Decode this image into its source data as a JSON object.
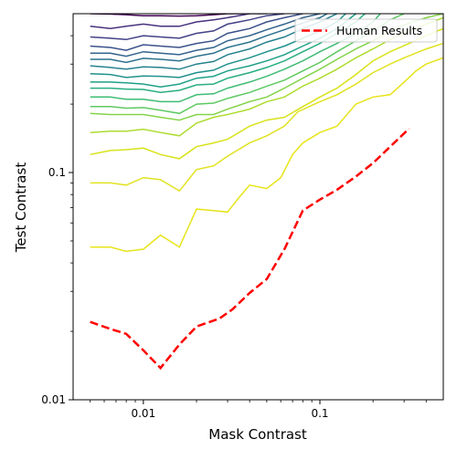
{
  "chart_data": {
    "type": "line",
    "title": "",
    "xlabel": "Mask Contrast",
    "ylabel": "Test Contrast",
    "xscale": "log",
    "yscale": "log",
    "xlim": [
      0.004,
      0.5
    ],
    "ylim": [
      0.01,
      0.5
    ],
    "x_ticks": [
      {
        "value": 0.01,
        "label": "0.01"
      },
      {
        "value": 0.1,
        "label": "0.1"
      }
    ],
    "y_ticks": [
      {
        "value": 0.01,
        "label": "0.01"
      },
      {
        "value": 0.1,
        "label": "0.1"
      }
    ],
    "grid": false,
    "legend": {
      "position": "top-right",
      "entries": [
        "Human Results"
      ]
    },
    "series": [
      {
        "name": "Human Results",
        "style": "dashed",
        "color": "#ff0000",
        "x": [
          0.005,
          0.0065,
          0.008,
          0.01,
          0.0125,
          0.016,
          0.02,
          0.027,
          0.032,
          0.04,
          0.05,
          0.063,
          0.08,
          0.1,
          0.125,
          0.16,
          0.2,
          0.25,
          0.32
        ],
        "y": [
          0.022,
          0.0205,
          0.0195,
          0.0165,
          0.0138,
          0.0175,
          0.021,
          0.0228,
          0.025,
          0.0295,
          0.034,
          0.046,
          0.068,
          0.076,
          0.084,
          0.096,
          0.11,
          0.13,
          0.156
        ]
      }
    ],
    "contour_lines": [
      {
        "color": "#440154",
        "x": [
          0.005,
          0.0065,
          0.008,
          0.01,
          0.0125,
          0.016,
          0.02,
          0.025,
          0.03,
          0.04
        ],
        "y": [
          0.5,
          0.498,
          0.495,
          0.49,
          0.49,
          0.488,
          0.49,
          0.495,
          0.5,
          0.5
        ]
      },
      {
        "color": "#46327e",
        "x": [
          0.005,
          0.0065,
          0.008,
          0.01,
          0.0125,
          0.016,
          0.02,
          0.025,
          0.03,
          0.04,
          0.05
        ],
        "y": [
          0.44,
          0.43,
          0.44,
          0.45,
          0.44,
          0.44,
          0.46,
          0.47,
          0.48,
          0.5,
          0.5
        ]
      },
      {
        "color": "#424186",
        "x": [
          0.005,
          0.0065,
          0.008,
          0.01,
          0.0125,
          0.016,
          0.02,
          0.025,
          0.03,
          0.04,
          0.05,
          0.063
        ],
        "y": [
          0.395,
          0.39,
          0.385,
          0.4,
          0.395,
          0.39,
          0.41,
          0.42,
          0.45,
          0.47,
          0.49,
          0.5
        ]
      },
      {
        "color": "#3b518b",
        "x": [
          0.005,
          0.0065,
          0.008,
          0.01,
          0.0125,
          0.016,
          0.02,
          0.025,
          0.03,
          0.04,
          0.05,
          0.063,
          0.08
        ],
        "y": [
          0.36,
          0.355,
          0.345,
          0.365,
          0.36,
          0.355,
          0.37,
          0.38,
          0.41,
          0.43,
          0.46,
          0.48,
          0.5
        ]
      },
      {
        "color": "#33638d",
        "x": [
          0.005,
          0.0065,
          0.008,
          0.01,
          0.0125,
          0.016,
          0.02,
          0.025,
          0.03,
          0.04,
          0.05,
          0.063,
          0.08,
          0.1
        ],
        "y": [
          0.335,
          0.335,
          0.325,
          0.34,
          0.335,
          0.33,
          0.345,
          0.355,
          0.38,
          0.4,
          0.425,
          0.45,
          0.48,
          0.5
        ]
      },
      {
        "color": "#2c728e",
        "x": [
          0.005,
          0.0065,
          0.008,
          0.01,
          0.0125,
          0.016,
          0.02,
          0.025,
          0.03,
          0.04,
          0.05,
          0.063,
          0.08,
          0.1,
          0.11
        ],
        "y": [
          0.315,
          0.315,
          0.305,
          0.318,
          0.315,
          0.31,
          0.325,
          0.335,
          0.355,
          0.375,
          0.4,
          0.425,
          0.455,
          0.48,
          0.5
        ]
      },
      {
        "color": "#26828e",
        "x": [
          0.005,
          0.0065,
          0.008,
          0.01,
          0.0125,
          0.016,
          0.02,
          0.025,
          0.03,
          0.04,
          0.05,
          0.063,
          0.08,
          0.1,
          0.125
        ],
        "y": [
          0.295,
          0.29,
          0.285,
          0.292,
          0.29,
          0.285,
          0.3,
          0.308,
          0.33,
          0.35,
          0.375,
          0.395,
          0.43,
          0.46,
          0.5
        ]
      },
      {
        "color": "#21918c",
        "x": [
          0.005,
          0.0065,
          0.008,
          0.01,
          0.0125,
          0.016,
          0.02,
          0.025,
          0.03,
          0.04,
          0.05,
          0.063,
          0.08,
          0.1,
          0.125,
          0.14
        ],
        "y": [
          0.272,
          0.27,
          0.262,
          0.266,
          0.265,
          0.262,
          0.275,
          0.282,
          0.3,
          0.32,
          0.34,
          0.36,
          0.39,
          0.42,
          0.46,
          0.5
        ]
      },
      {
        "color": "#1fa088",
        "x": [
          0.005,
          0.0065,
          0.008,
          0.01,
          0.0125,
          0.016,
          0.02,
          0.025,
          0.03,
          0.04,
          0.05,
          0.063,
          0.08,
          0.1,
          0.125,
          0.16
        ],
        "y": [
          0.25,
          0.25,
          0.248,
          0.245,
          0.238,
          0.245,
          0.26,
          0.265,
          0.28,
          0.295,
          0.31,
          0.33,
          0.36,
          0.39,
          0.43,
          0.5
        ]
      },
      {
        "color": "#28ae80",
        "x": [
          0.005,
          0.0065,
          0.008,
          0.01,
          0.0125,
          0.016,
          0.02,
          0.025,
          0.03,
          0.04,
          0.05,
          0.063,
          0.08,
          0.1,
          0.125,
          0.16,
          0.18
        ],
        "y": [
          0.235,
          0.235,
          0.233,
          0.232,
          0.225,
          0.23,
          0.243,
          0.245,
          0.26,
          0.275,
          0.29,
          0.31,
          0.34,
          0.37,
          0.41,
          0.46,
          0.5
        ]
      },
      {
        "color": "#3fbc73",
        "x": [
          0.005,
          0.0065,
          0.008,
          0.01,
          0.0125,
          0.016,
          0.02,
          0.025,
          0.03,
          0.04,
          0.05,
          0.063,
          0.08,
          0.1,
          0.125,
          0.16,
          0.2,
          0.22
        ],
        "y": [
          0.215,
          0.215,
          0.21,
          0.21,
          0.205,
          0.205,
          0.22,
          0.222,
          0.235,
          0.25,
          0.265,
          0.285,
          0.31,
          0.34,
          0.37,
          0.41,
          0.46,
          0.5
        ]
      },
      {
        "color": "#5ec962",
        "x": [
          0.005,
          0.0065,
          0.008,
          0.01,
          0.0125,
          0.016,
          0.02,
          0.025,
          0.03,
          0.04,
          0.05,
          0.063,
          0.08,
          0.1,
          0.125,
          0.16,
          0.2,
          0.25,
          0.3
        ],
        "y": [
          0.195,
          0.195,
          0.192,
          0.193,
          0.188,
          0.182,
          0.2,
          0.202,
          0.212,
          0.225,
          0.24,
          0.255,
          0.28,
          0.305,
          0.34,
          0.38,
          0.42,
          0.47,
          0.5
        ]
      },
      {
        "color": "#84d44b",
        "x": [
          0.005,
          0.0065,
          0.008,
          0.01,
          0.0125,
          0.016,
          0.02,
          0.025,
          0.03,
          0.04,
          0.05,
          0.063,
          0.08,
          0.1,
          0.125,
          0.16,
          0.2,
          0.25,
          0.32,
          0.4,
          0.5
        ],
        "y": [
          0.182,
          0.18,
          0.18,
          0.18,
          0.175,
          0.17,
          0.18,
          0.18,
          0.19,
          0.205,
          0.215,
          0.235,
          0.26,
          0.285,
          0.315,
          0.35,
          0.38,
          0.42,
          0.455,
          0.48,
          0.5
        ]
      },
      {
        "color": "#addc30",
        "x": [
          0.005,
          0.0065,
          0.008,
          0.01,
          0.0125,
          0.016,
          0.02,
          0.025,
          0.03,
          0.04,
          0.05,
          0.063,
          0.08,
          0.1,
          0.125,
          0.16,
          0.2,
          0.25,
          0.32,
          0.4,
          0.5
        ],
        "y": [
          0.15,
          0.152,
          0.152,
          0.155,
          0.15,
          0.145,
          0.165,
          0.175,
          0.18,
          0.19,
          0.205,
          0.215,
          0.24,
          0.26,
          0.285,
          0.32,
          0.35,
          0.385,
          0.42,
          0.45,
          0.48
        ]
      },
      {
        "color": "#d8e219",
        "x": [
          0.005,
          0.0065,
          0.008,
          0.01,
          0.0125,
          0.016,
          0.02,
          0.025,
          0.03,
          0.04,
          0.05,
          0.063,
          0.08,
          0.1,
          0.125,
          0.16,
          0.2,
          0.25,
          0.32,
          0.4,
          0.5
        ],
        "y": [
          0.12,
          0.125,
          0.126,
          0.128,
          0.12,
          0.115,
          0.13,
          0.135,
          0.14,
          0.16,
          0.17,
          0.175,
          0.195,
          0.215,
          0.235,
          0.27,
          0.31,
          0.34,
          0.37,
          0.4,
          0.43
        ]
      },
      {
        "color": "#e1e21f",
        "x": [
          0.005,
          0.0065,
          0.008,
          0.01,
          0.0125,
          0.016,
          0.02,
          0.025,
          0.03,
          0.04,
          0.05,
          0.063,
          0.075,
          0.1,
          0.125,
          0.16,
          0.2,
          0.25,
          0.3,
          0.4,
          0.5
        ],
        "y": [
          0.09,
          0.09,
          0.088,
          0.095,
          0.093,
          0.083,
          0.103,
          0.107,
          0.118,
          0.135,
          0.145,
          0.16,
          0.185,
          0.205,
          0.22,
          0.245,
          0.275,
          0.3,
          0.32,
          0.35,
          0.37
        ]
      },
      {
        "color": "#e7e419",
        "x": [
          0.005,
          0.0065,
          0.008,
          0.01,
          0.0125,
          0.016,
          0.02,
          0.025,
          0.03,
          0.035,
          0.04,
          0.05,
          0.06,
          0.07,
          0.08,
          0.1,
          0.125,
          0.16,
          0.2,
          0.25,
          0.3,
          0.35,
          0.4,
          0.5
        ],
        "y": [
          0.047,
          0.047,
          0.045,
          0.046,
          0.053,
          0.047,
          0.069,
          0.068,
          0.067,
          0.078,
          0.088,
          0.085,
          0.095,
          0.12,
          0.135,
          0.15,
          0.16,
          0.2,
          0.215,
          0.22,
          0.25,
          0.28,
          0.3,
          0.32
        ]
      }
    ]
  }
}
